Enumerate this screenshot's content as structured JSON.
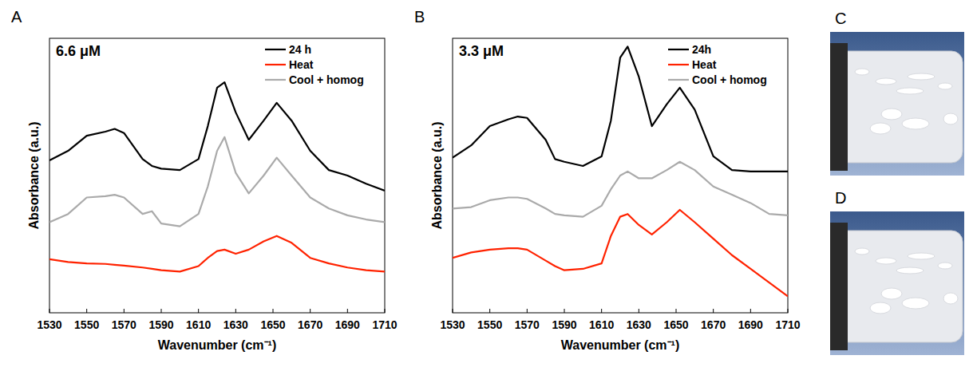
{
  "chart_data": [
    {
      "type": "line",
      "panel_label": "A",
      "annotations": [
        "6.6 μM"
      ],
      "x_label": "Wavenumber (cm⁻¹)",
      "y_label": "Absorbance (a.u.)",
      "xlim": [
        1530,
        1710
      ],
      "xticks": [
        1530,
        1550,
        1570,
        1590,
        1610,
        1630,
        1650,
        1670,
        1690,
        1710
      ],
      "ylim": [
        0,
        10
      ],
      "tick_labels": "x",
      "grid": false,
      "legend": "top-right",
      "x": [
        1530,
        1540,
        1550,
        1560,
        1565,
        1570,
        1580,
        1585,
        1590,
        1600,
        1610,
        1615,
        1620,
        1624,
        1630,
        1637,
        1645,
        1652,
        1660,
        1670,
        1680,
        1690,
        1700,
        1710
      ],
      "series": [
        {
          "name": "24 h",
          "color": "#000000",
          "values": [
            5.55,
            5.9,
            6.45,
            6.6,
            6.7,
            6.55,
            5.6,
            5.35,
            5.25,
            5.2,
            5.6,
            6.8,
            8.2,
            8.4,
            7.3,
            6.3,
            7.0,
            7.65,
            7.0,
            5.9,
            5.2,
            5.0,
            4.7,
            4.45
          ]
        },
        {
          "name": "Heat",
          "color": "#ff2200",
          "values": [
            1.95,
            1.85,
            1.8,
            1.78,
            1.75,
            1.72,
            1.65,
            1.6,
            1.55,
            1.5,
            1.7,
            2.0,
            2.25,
            2.3,
            2.15,
            2.3,
            2.6,
            2.8,
            2.55,
            2.0,
            1.8,
            1.65,
            1.55,
            1.5
          ]
        },
        {
          "name": "Cool + homog",
          "color": "#aaaaaa",
          "values": [
            3.3,
            3.6,
            4.2,
            4.25,
            4.3,
            4.2,
            3.6,
            3.7,
            3.25,
            3.15,
            3.6,
            4.6,
            5.9,
            6.4,
            5.1,
            4.35,
            5.0,
            5.65,
            5.0,
            4.2,
            3.8,
            3.55,
            3.4,
            3.3
          ]
        }
      ]
    },
    {
      "type": "line",
      "panel_label": "B",
      "annotations": [
        "3.3 μM"
      ],
      "x_label": "Wavenumber (cm⁻¹)",
      "y_label": "Absorbance (a.u.)",
      "xlim": [
        1530,
        1710
      ],
      "xticks": [
        1530,
        1550,
        1570,
        1590,
        1610,
        1630,
        1650,
        1670,
        1690,
        1710
      ],
      "ylim": [
        0,
        10
      ],
      "tick_labels": "x",
      "grid": false,
      "legend": "top-right",
      "x": [
        1530,
        1540,
        1550,
        1560,
        1565,
        1570,
        1580,
        1585,
        1590,
        1600,
        1610,
        1615,
        1620,
        1624,
        1630,
        1637,
        1645,
        1652,
        1660,
        1670,
        1680,
        1690,
        1700,
        1710
      ],
      "series": [
        {
          "name": "24h",
          "color": "#000000",
          "values": [
            5.65,
            6.1,
            6.8,
            7.05,
            7.15,
            7.1,
            6.3,
            5.6,
            5.5,
            5.35,
            5.7,
            7.0,
            9.3,
            9.7,
            8.6,
            6.8,
            7.6,
            8.2,
            7.4,
            5.7,
            5.2,
            5.15,
            5.15,
            5.15
          ]
        },
        {
          "name": "Heat",
          "color": "#ff2200",
          "values": [
            2.0,
            2.2,
            2.3,
            2.35,
            2.35,
            2.3,
            1.9,
            1.7,
            1.55,
            1.6,
            1.8,
            2.8,
            3.5,
            3.6,
            3.2,
            2.85,
            3.3,
            3.75,
            3.3,
            2.7,
            2.1,
            1.6,
            1.1,
            0.6
          ]
        },
        {
          "name": "Cool + homog",
          "color": "#aaaaaa",
          "values": [
            3.8,
            3.85,
            4.1,
            4.2,
            4.2,
            4.15,
            3.8,
            3.6,
            3.55,
            3.5,
            3.9,
            4.5,
            5.0,
            5.15,
            4.9,
            4.9,
            5.2,
            5.5,
            5.2,
            4.6,
            4.3,
            4.0,
            3.6,
            3.55
          ]
        }
      ]
    }
  ],
  "images": [
    {
      "label": "C"
    },
    {
      "label": "D"
    }
  ]
}
